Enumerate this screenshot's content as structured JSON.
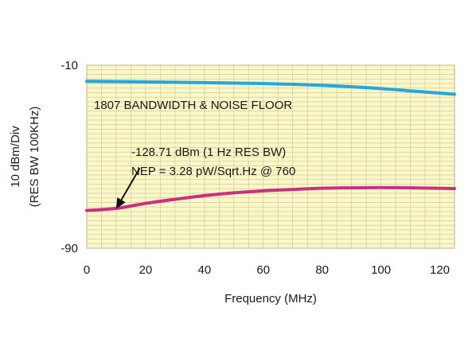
{
  "chart_data": {
    "type": "line",
    "xlabel": "Frequency (MHz)",
    "ylabel_lines": [
      "10 dBm/Div",
      "(RES BW 100KHz)"
    ],
    "xlim": [
      0,
      125
    ],
    "ylim": [
      -90,
      -10
    ],
    "x_ticks": [
      0,
      20,
      40,
      60,
      80,
      100,
      120
    ],
    "y_tick_labels": [
      "-10",
      "-90"
    ],
    "y_tick_values": [
      -10,
      -90
    ],
    "grid": true,
    "colors": {
      "background": "#fbf8c8",
      "grid": "#cfcba0",
      "bandwidth": "#25a7dd",
      "noise_floor": "#c8317f"
    },
    "series": [
      {
        "key": "bandwidth",
        "x": [
          0,
          20,
          40,
          60,
          80,
          100,
          110,
          125
        ],
        "y": [
          -17,
          -17.3,
          -17.6,
          -18,
          -18.8,
          -20.2,
          -21.2,
          -22.7
        ]
      },
      {
        "key": "noise_floor",
        "x": [
          0,
          10,
          20,
          30,
          40,
          50,
          60,
          70,
          80,
          90,
          100,
          110,
          125
        ],
        "y": [
          -73.5,
          -72.6,
          -70.4,
          -68.6,
          -67,
          -65.8,
          -64.9,
          -64.3,
          -63.8,
          -63.6,
          -63.5,
          -63.6,
          -63.9
        ]
      }
    ],
    "annotations": {
      "title": "1807 BANDWIDTH & NOISE FLOOR",
      "line1": "-128.71 dBm (1 Hz RES BW)",
      "line2": "NEP = 3.28 pW/Sqrt.Hz @ 760"
    },
    "arrow": {
      "from": [
        18,
        -55
      ],
      "to": [
        10,
        -72.8
      ]
    }
  }
}
